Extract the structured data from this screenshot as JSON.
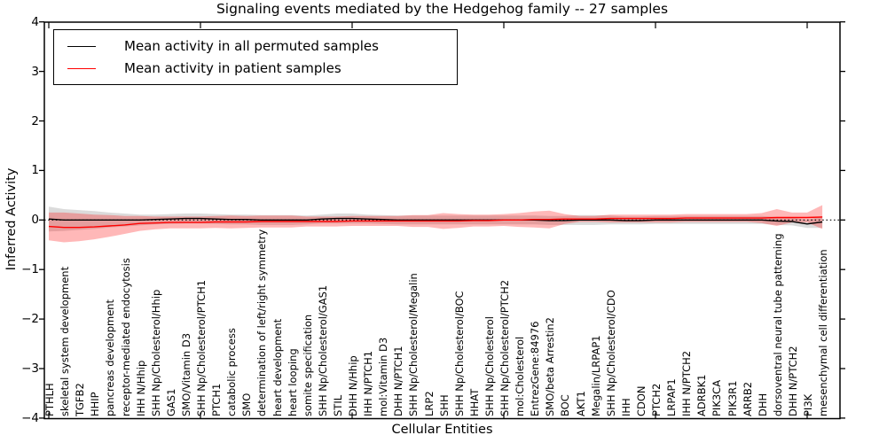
{
  "title": "Signaling events mediated by the Hedgehog family -- 27 samples",
  "legend": {
    "position": "upper left",
    "items": [
      {
        "label": "Mean activity in all permuted samples",
        "color": "#000000"
      },
      {
        "label": "Mean activity in patient samples",
        "color": "#ff0000"
      }
    ]
  },
  "axes": {
    "ylabel": "Inferred Activity",
    "xlabel": "Cellular Entities",
    "ytick_labels": [
      "4",
      "3",
      "2",
      "1",
      "0",
      "−1",
      "−2",
      "−3",
      "−4"
    ],
    "ytick_values": [
      4,
      3,
      2,
      1,
      0,
      -1,
      -2,
      -3,
      -4
    ]
  },
  "chart_data": {
    "type": "line",
    "title": "Signaling events mediated by the Hedgehog family -- 27 samples",
    "xlabel": "Cellular Entities",
    "ylabel": "Inferred Activity",
    "ylim": [
      -4,
      4
    ],
    "grid": false,
    "zero_line": "black dotted",
    "legend_position": "upper left",
    "x_major_tick_every": 10,
    "categories": [
      "PTHLH",
      "skeletal system development",
      "TGFB2",
      "HHIP",
      "pancreas development",
      "receptor-mediated endocytosis",
      "IHH N/Hhip",
      "SHH Np/Cholesterol/Hhip",
      "GAS1",
      "SMO/Vitamin D3",
      "SHH Np/Cholesterol/PTCH1",
      "PTCH1",
      "catabolic process",
      "SMO",
      "determination of left/right symmetry",
      "heart development",
      "heart looping",
      "somite specification",
      "SHH Np/Cholesterol/GAS1",
      "STIL",
      "DHH N/Hhip",
      "IHH N/PTCH1",
      "mol:Vitamin D3",
      "DHH N/PTCH1",
      "SHH Np/Cholesterol/Megalin",
      "LRP2",
      "SHH",
      "SHH Np/Cholesterol/BOC",
      "HHAT",
      "SHH Np/Cholesterol",
      "SHH Np/Cholesterol/PTCH2",
      "mol:Cholesterol",
      "EntrezGene:84976",
      "SMO/beta Arrestin2",
      "BOC",
      "AKT1",
      "Megalin/LRPAP1",
      "SHH Np/Cholesterol/CDO",
      "IHH",
      "CDON",
      "PTCH2",
      "LRPAP1",
      "IHH N/PTCH2",
      "ADRBK1",
      "PIK3CA",
      "PIK3R1",
      "ARRB2",
      "DHH",
      "dorsoventral neural tube patterning",
      "DHH N/PTCH2",
      "PI3K",
      "mesenchymal cell differentiation"
    ],
    "series": [
      {
        "name": "Mean activity in all permuted samples",
        "color": "#000000",
        "band_color": "#999999",
        "band_opacity": 0.35,
        "values": [
          0.02,
          0.0,
          0.0,
          0.0,
          0.0,
          0.0,
          0.0,
          0.01,
          0.02,
          0.03,
          0.03,
          0.02,
          0.01,
          0.01,
          0.0,
          0.0,
          0.0,
          0.0,
          0.02,
          0.03,
          0.03,
          0.02,
          0.01,
          0.0,
          0.0,
          0.0,
          0.0,
          0.0,
          0.0,
          0.0,
          0.0,
          0.0,
          0.0,
          -0.01,
          -0.01,
          0.0,
          0.0,
          0.0,
          -0.01,
          -0.01,
          0.0,
          0.0,
          0.0,
          0.0,
          0.0,
          0.0,
          0.0,
          0.0,
          -0.02,
          -0.03,
          -0.08,
          -0.04
        ],
        "band_halfwidth": [
          0.25,
          0.22,
          0.2,
          0.18,
          0.15,
          0.13,
          0.11,
          0.1,
          0.1,
          0.1,
          0.1,
          0.1,
          0.1,
          0.1,
          0.1,
          0.1,
          0.1,
          0.09,
          0.09,
          0.1,
          0.1,
          0.09,
          0.09,
          0.09,
          0.09,
          0.09,
          0.09,
          0.09,
          0.09,
          0.09,
          0.09,
          0.09,
          0.09,
          0.09,
          0.09,
          0.1,
          0.1,
          0.09,
          0.08,
          0.08,
          0.08,
          0.08,
          0.08,
          0.08,
          0.08,
          0.08,
          0.08,
          0.08,
          0.08,
          0.08,
          0.08,
          0.12
        ]
      },
      {
        "name": "Mean activity in patient samples",
        "color": "#ff0000",
        "band_color": "#ff0000",
        "band_opacity": 0.28,
        "values": [
          -0.13,
          -0.15,
          -0.15,
          -0.14,
          -0.12,
          -0.1,
          -0.07,
          -0.06,
          -0.05,
          -0.05,
          -0.05,
          -0.04,
          -0.04,
          -0.04,
          -0.03,
          -0.03,
          -0.03,
          -0.03,
          -0.03,
          -0.03,
          -0.02,
          -0.02,
          -0.02,
          -0.02,
          -0.02,
          -0.02,
          -0.02,
          -0.02,
          -0.01,
          -0.01,
          0.0,
          0.0,
          0.01,
          0.01,
          0.02,
          0.02,
          0.02,
          0.03,
          0.03,
          0.03,
          0.03,
          0.03,
          0.04,
          0.04,
          0.04,
          0.04,
          0.04,
          0.04,
          0.05,
          0.05,
          0.05,
          0.06
        ],
        "band_halfwidth": [
          0.28,
          0.3,
          0.28,
          0.25,
          0.22,
          0.18,
          0.15,
          0.13,
          0.12,
          0.12,
          0.12,
          0.12,
          0.13,
          0.12,
          0.12,
          0.12,
          0.12,
          0.1,
          0.1,
          0.1,
          0.1,
          0.1,
          0.1,
          0.1,
          0.12,
          0.12,
          0.16,
          0.14,
          0.12,
          0.12,
          0.12,
          0.14,
          0.16,
          0.18,
          0.1,
          0.06,
          0.06,
          0.08,
          0.08,
          0.08,
          0.08,
          0.08,
          0.08,
          0.08,
          0.08,
          0.08,
          0.08,
          0.1,
          0.17,
          0.1,
          0.1,
          0.24
        ]
      }
    ]
  }
}
